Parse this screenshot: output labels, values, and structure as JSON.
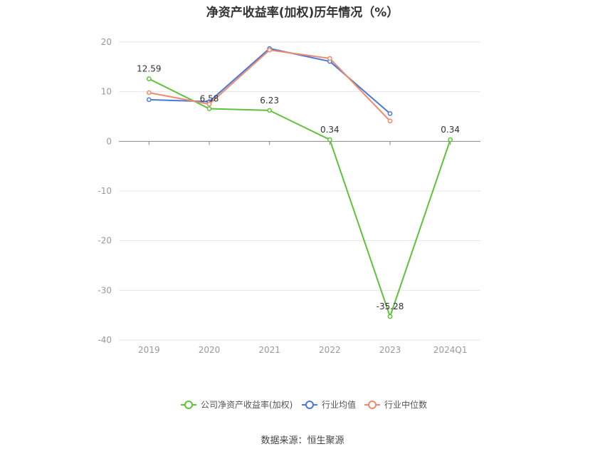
{
  "chart_data": {
    "type": "line",
    "title": "净资产收益率(加权)历年情况（%）",
    "categories": [
      "2019",
      "2020",
      "2021",
      "2022",
      "2023",
      "2024Q1"
    ],
    "ylim": [
      -40,
      20
    ],
    "yticks": [
      "20",
      "10",
      "0",
      "-10",
      "-20",
      "-30",
      "-40"
    ],
    "grid": true,
    "legend_position": "bottom",
    "series": [
      {
        "name": "公司净资产收益率(加权)",
        "color": "#5ec23a",
        "values": [
          12.59,
          6.58,
          6.23,
          0.34,
          -35.28,
          0.34
        ],
        "labels": [
          "12.59",
          "6.58",
          "6.23",
          "0.34",
          "-35.28",
          "0.34"
        ]
      },
      {
        "name": "行业均值",
        "color": "#4a78d8",
        "values": [
          8.4,
          8.0,
          18.7,
          16.1,
          5.6,
          null
        ]
      },
      {
        "name": "行业中位数",
        "color": "#f08a6c",
        "values": [
          9.8,
          7.5,
          18.4,
          16.7,
          4.1,
          null
        ]
      }
    ]
  },
  "source_text": "数据来源：恒生聚源"
}
